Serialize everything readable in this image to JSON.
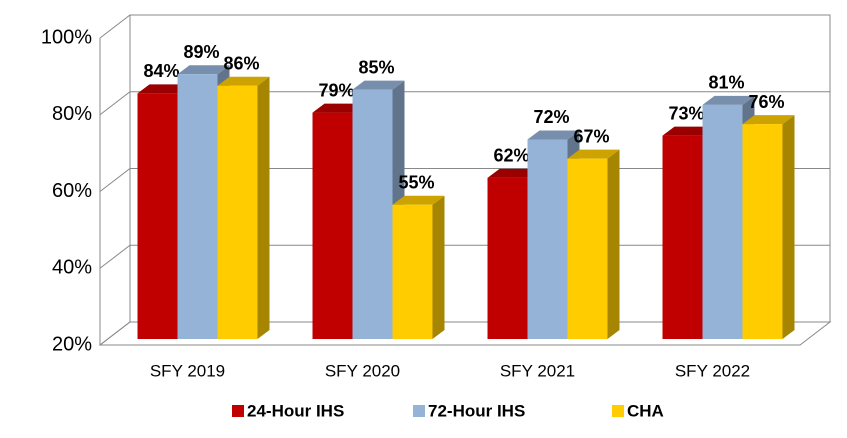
{
  "chart_data": {
    "type": "bar3d",
    "categories": [
      "SFY 2019",
      "SFY 2020",
      "SFY 2021",
      "SFY 2022"
    ],
    "series": [
      {
        "name": "24-Hour IHS",
        "color": "#c00000",
        "values": [
          84,
          79,
          62,
          73
        ],
        "value_labels": [
          "84%",
          "79%",
          "62%",
          "73%"
        ]
      },
      {
        "name": "72-Hour IHS",
        "color": "#95b3d7",
        "values": [
          89,
          85,
          72,
          81
        ],
        "value_labels": [
          "89%",
          "85%",
          "72%",
          "81%"
        ]
      },
      {
        "name": "CHA",
        "color": "#ffcc00",
        "values": [
          86,
          55,
          67,
          76
        ],
        "value_labels": [
          "86%",
          "55%",
          "67%",
          "76%"
        ]
      }
    ],
    "ylim": [
      20,
      100
    ],
    "yticks": [
      {
        "value": 20,
        "label": "20%"
      },
      {
        "value": 40,
        "label": "40%"
      },
      {
        "value": 60,
        "label": "60%"
      },
      {
        "value": 80,
        "label": "80%"
      },
      {
        "value": 100,
        "label": "100%"
      }
    ],
    "grid": true,
    "legend": "bottom"
  }
}
